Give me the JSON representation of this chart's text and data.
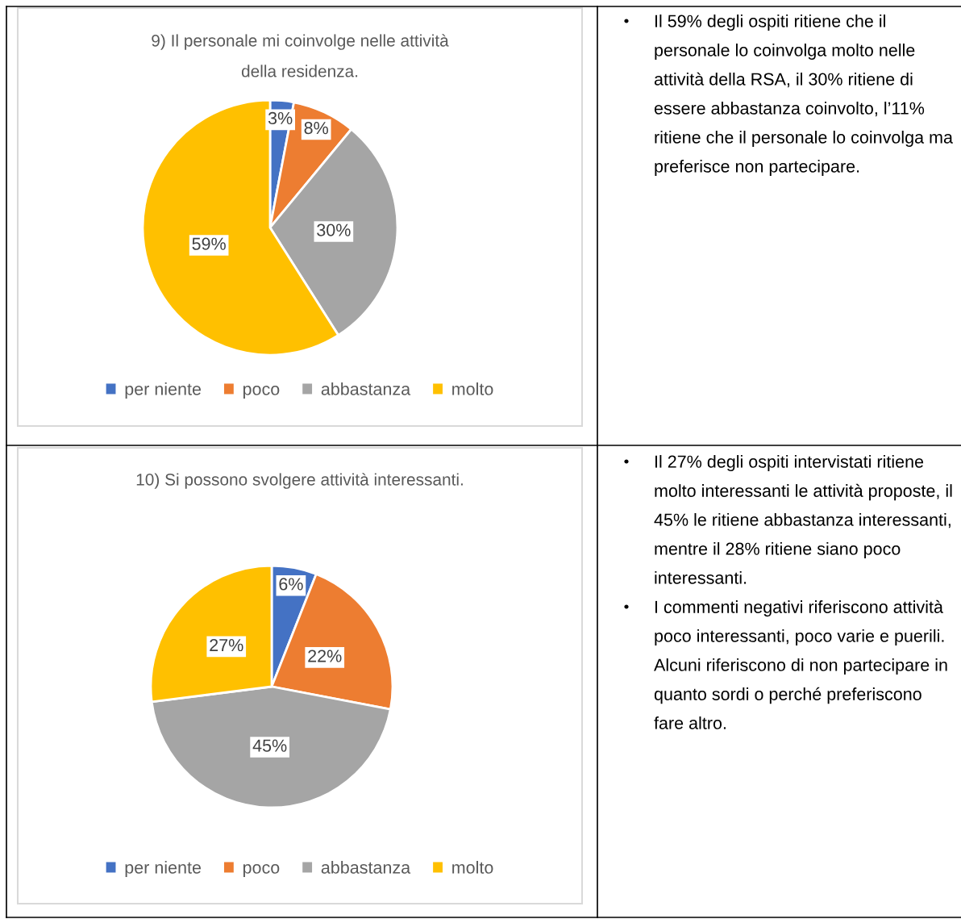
{
  "chart_data": [
    {
      "type": "pie",
      "title": "9) Il personale mi coinvolge nelle attività della residenza.",
      "categories": [
        "per niente",
        "poco",
        "abbastanza",
        "molto"
      ],
      "values": [
        3,
        8,
        30,
        59
      ],
      "colors": [
        "#4472c4",
        "#ed7d31",
        "#a5a5a5",
        "#ffc000"
      ],
      "value_labels": [
        "3%",
        "8%",
        "30%",
        "59%"
      ],
      "legend": "bottom"
    },
    {
      "type": "other",
      "annotations": [
        "Il 59% degli ospiti ritiene che il personale lo coinvolga molto nelle attività della RSA, il 30% ritiene di essere abbastanza coinvolto, l’11% ritiene che il personale lo coinvolga ma preferisce non partecipare."
      ]
    },
    {
      "type": "pie",
      "title": "10) Si possono svolgere attività interessanti.",
      "categories": [
        "per niente",
        "poco",
        "abbastanza",
        "molto"
      ],
      "values": [
        6,
        22,
        45,
        27
      ],
      "colors": [
        "#4472c4",
        "#ed7d31",
        "#a5a5a5",
        "#ffc000"
      ],
      "value_labels": [
        "6%",
        "22%",
        "45%",
        "27%"
      ],
      "legend": "bottom"
    },
    {
      "type": "other",
      "annotations": [
        "Il 27% degli ospiti intervistati ritiene molto interessanti le attività proposte, il 45% le ritiene abbastanza interessanti, mentre il 28% ritiene siano poco interessanti.",
        "I commenti negativi riferiscono attività poco interessanti, poco varie e puerili. Alcuni riferiscono di non partecipare in quanto sordi o perché preferiscono fare altro."
      ]
    }
  ]
}
